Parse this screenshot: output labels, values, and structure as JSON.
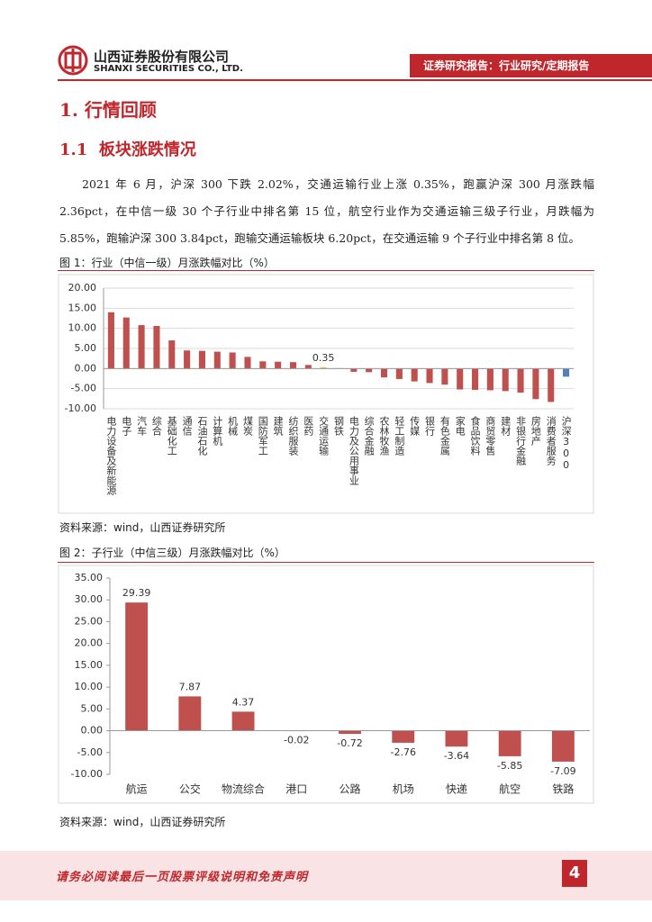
{
  "header": {
    "company_cn": "山西证券股份有限公司",
    "company_en": "SHANXI SECURITIES CO., LTD.",
    "report_type": "证券研究报告：行业研究/定期报告"
  },
  "headings": [
    "1. 行情回顾",
    "1.1  板块涨跌情况"
  ],
  "paragraph": "2021 年 6 月，沪深 300 下跌 2.02%，交通运输行业上涨 0.35%，跑赢沪深 300 月涨跌幅 2.36pct，在中信一级 30 个子行业中排名第 15 位，航空行业作为交通运输三级子行业，月跌幅为 5.85%，跑输沪深 300 3.84pct，跑输交通运输板块 6.20pct，在交通运输 9 个子行业中排名第 8 位。",
  "figures": [
    {
      "caption": "图 1：行业（中信一级）月涨跌幅对比（%）",
      "source": "资料来源：wind，山西证券研究所"
    },
    {
      "caption": "图 2：子行业（中信三级）月涨跌幅对比（%）",
      "source": "资料来源：wind，山西证券研究所"
    }
  ],
  "chart_data": [
    {
      "type": "bar",
      "categories": [
        "电力设备及新能源",
        "电子",
        "汽车",
        "综合",
        "基础化工",
        "通信",
        "石油石化",
        "计算机",
        "机械",
        "煤炭",
        "国防军工",
        "建筑",
        "纺织服装",
        "医药",
        "交通运输",
        "钢铁",
        "电力及公用事业",
        "综合金融",
        "农林牧渔",
        "轻工制造",
        "传媒",
        "银行",
        "有色金属",
        "家电",
        "食品饮料",
        "商贸零售",
        "建材",
        "非银行金融",
        "房地产",
        "消费者服务",
        "沪深300"
      ],
      "values": [
        14.0,
        12.7,
        10.8,
        10.6,
        7.0,
        4.5,
        4.4,
        4.2,
        4.0,
        2.9,
        1.8,
        1.7,
        1.6,
        0.9,
        0.35,
        0.1,
        -0.8,
        -0.9,
        -2.2,
        -2.6,
        -3.2,
        -3.6,
        -4.0,
        -5.2,
        -5.3,
        -5.4,
        -5.6,
        -6.0,
        -7.6,
        -8.3,
        -2.02
      ],
      "value_labels": [
        null,
        null,
        null,
        null,
        null,
        null,
        null,
        null,
        null,
        null,
        null,
        null,
        null,
        null,
        "0.35",
        null,
        null,
        null,
        null,
        null,
        null,
        null,
        null,
        null,
        null,
        null,
        null,
        null,
        null,
        null,
        null
      ],
      "colors": [
        "#c0504d",
        "#c0504d",
        "#c0504d",
        "#c0504d",
        "#c0504d",
        "#c0504d",
        "#c0504d",
        "#c0504d",
        "#c0504d",
        "#c0504d",
        "#c0504d",
        "#c0504d",
        "#c0504d",
        "#c0504d",
        "#f5c242",
        "#c0504d",
        "#c0504d",
        "#c0504d",
        "#c0504d",
        "#c0504d",
        "#c0504d",
        "#c0504d",
        "#c0504d",
        "#c0504d",
        "#c0504d",
        "#c0504d",
        "#c0504d",
        "#c0504d",
        "#c0504d",
        "#c0504d",
        "#4f81bd"
      ],
      "ylim": [
        -10,
        20
      ],
      "yticks": [
        {
          "value": -10,
          "label": "-10.00"
        },
        {
          "value": -5,
          "label": "-5.00"
        },
        {
          "value": 0,
          "label": "0.00"
        },
        {
          "value": 5,
          "label": "5.00"
        },
        {
          "value": 10,
          "label": "10.00"
        },
        {
          "value": 15,
          "label": "15.00"
        },
        {
          "value": 20,
          "label": "20.00"
        }
      ],
      "grid": true
    },
    {
      "type": "bar",
      "categories": [
        "航运",
        "公交",
        "物流综合",
        "港口",
        "公路",
        "机场",
        "快递",
        "航空",
        "铁路"
      ],
      "values": [
        29.39,
        7.87,
        4.37,
        -0.02,
        -0.72,
        -2.76,
        -3.64,
        -5.85,
        -7.09
      ],
      "color": "#c0504d",
      "data_labels": true,
      "ylim": [
        -10,
        35
      ],
      "yticks": [
        {
          "value": -10,
          "label": "-10.00"
        },
        {
          "value": -5,
          "label": "-5.00"
        },
        {
          "value": 0,
          "label": "0.00"
        },
        {
          "value": 5,
          "label": "5.00"
        },
        {
          "value": 10,
          "label": "10.00"
        },
        {
          "value": 15,
          "label": "15.00"
        },
        {
          "value": 20,
          "label": "20.00"
        },
        {
          "value": 25,
          "label": "25.00"
        },
        {
          "value": 30,
          "label": "30.00"
        },
        {
          "value": 35,
          "label": "35.00"
        }
      ],
      "grid": false
    }
  ],
  "footer": {
    "disclaimer": "请务必阅读最后一页股票评级说明和免责声明",
    "page": "4"
  }
}
